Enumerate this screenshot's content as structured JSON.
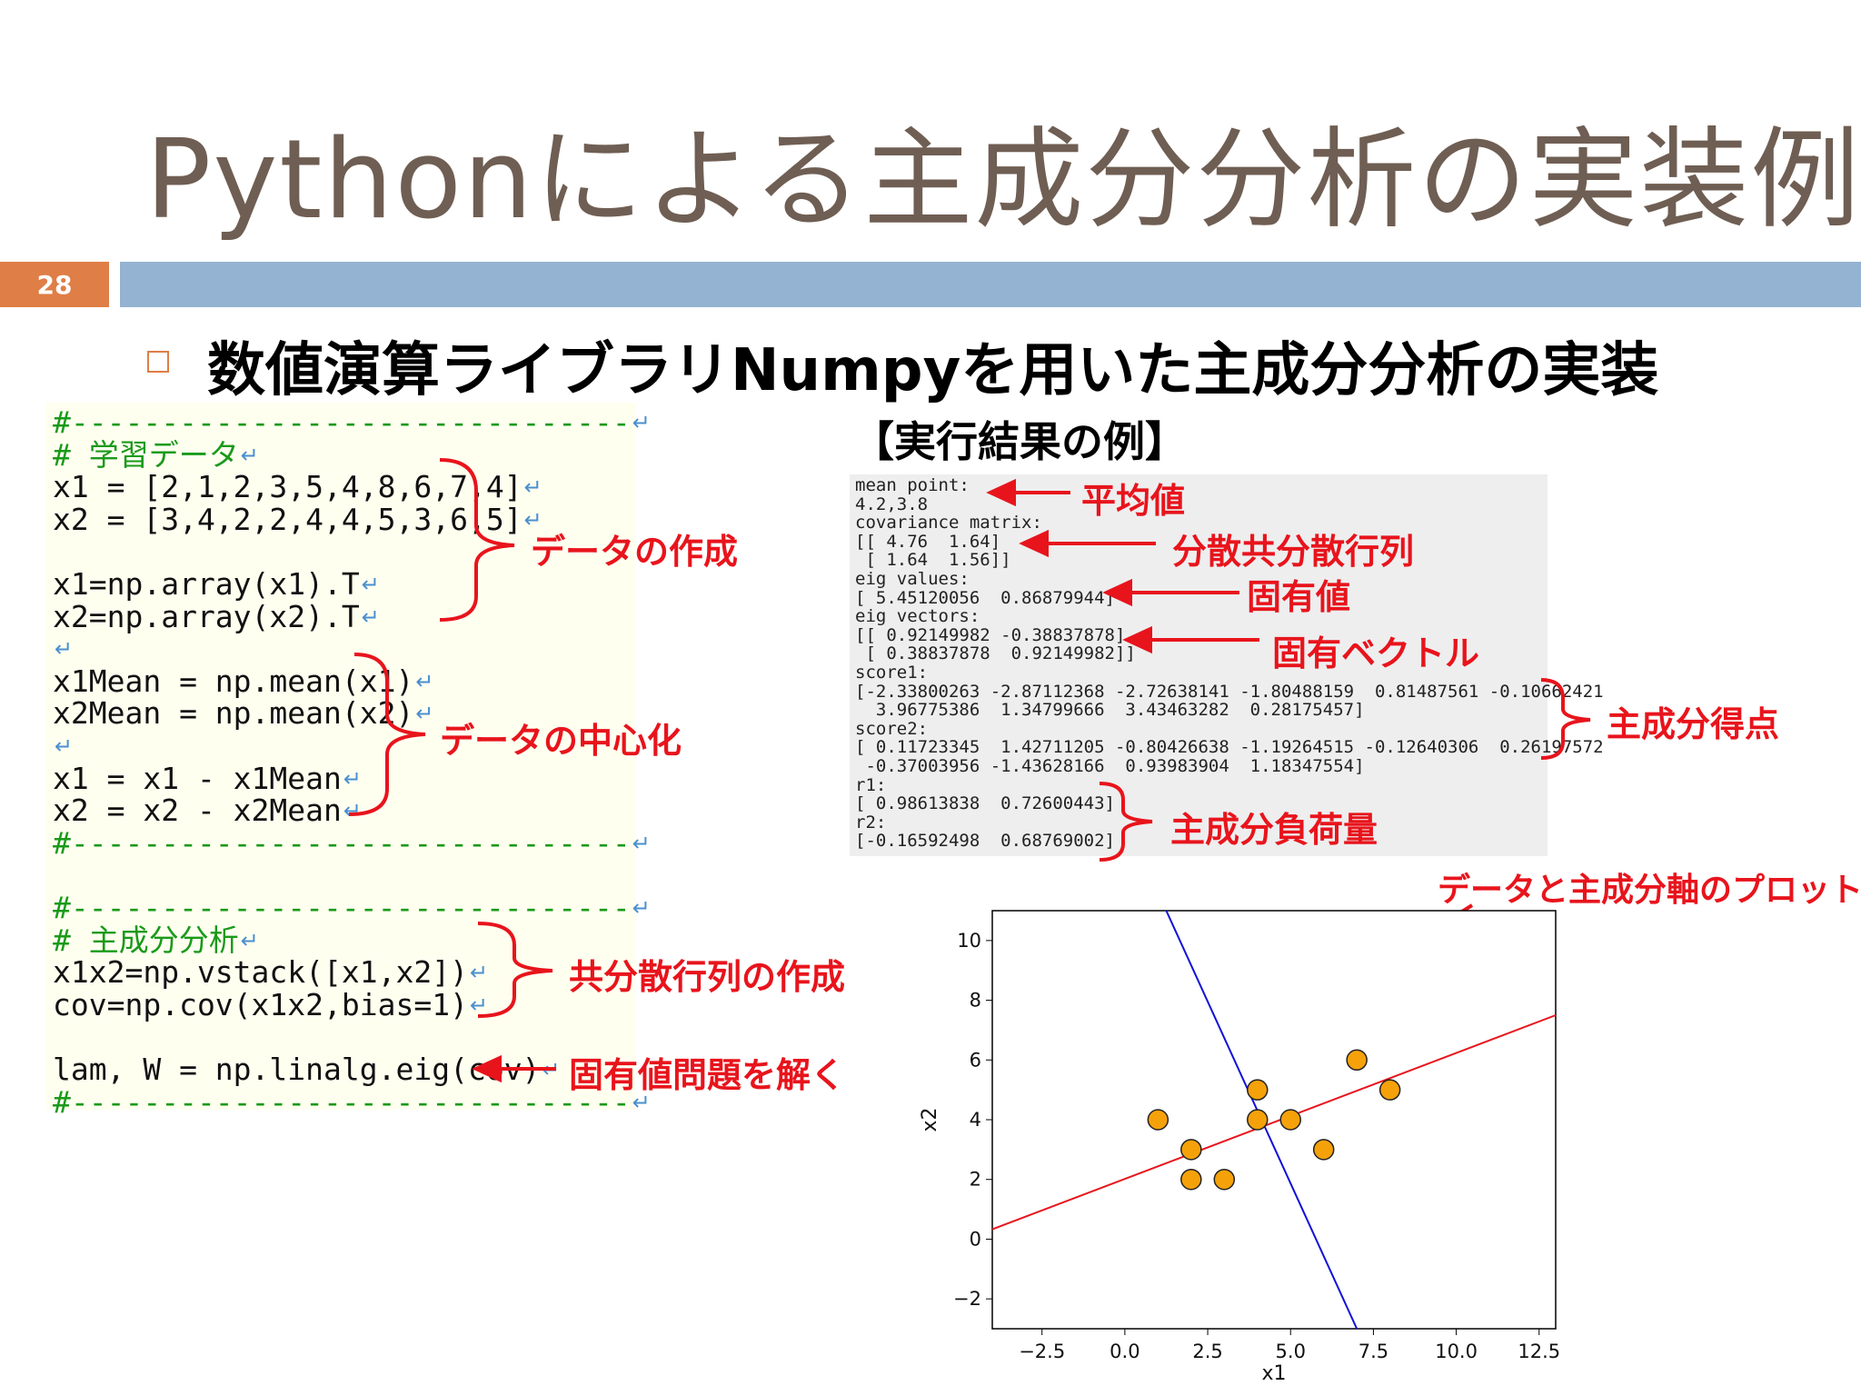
{
  "title": "Pythonによる主成分分析の実装例",
  "page_number": "28",
  "subtitle": "数値演算ライブラリNumpyを用いた主成分分析の実装",
  "code": {
    "lines": [
      {
        "text": "#-------------------------------",
        "type": "comment"
      },
      {
        "text": "# 学習データ",
        "type": "comment"
      },
      {
        "text": "x1 = [2,1,2,3,5,4,8,6,7,4]",
        "type": "code"
      },
      {
        "text": "x2 = [3,4,2,2,4,4,5,3,6,5]",
        "type": "code"
      },
      {
        "text": "",
        "type": "blank"
      },
      {
        "text": "x1=np.array(x1).T",
        "type": "code"
      },
      {
        "text": "x2=np.array(x2).T",
        "type": "code"
      },
      {
        "text": "",
        "type": "ret"
      },
      {
        "text": "x1Mean = np.mean(x1)",
        "type": "code"
      },
      {
        "text": "x2Mean = np.mean(x2)",
        "type": "code"
      },
      {
        "text": "",
        "type": "ret"
      },
      {
        "text": "x1 = x1 - x1Mean",
        "type": "code"
      },
      {
        "text": "x2 = x2 - x2Mean",
        "type": "code"
      },
      {
        "text": "#-------------------------------",
        "type": "comment"
      },
      {
        "text": "",
        "type": "blank"
      },
      {
        "text": "#-------------------------------",
        "type": "comment"
      },
      {
        "text": "# 主成分分析",
        "type": "comment"
      },
      {
        "text": "x1x2=np.vstack([x1,x2])",
        "type": "code"
      },
      {
        "text": "cov=np.cov(x1x2,bias=1)",
        "type": "code"
      },
      {
        "text": "",
        "type": "blank"
      },
      {
        "text": "lam, W = np.linalg.eig(cov)",
        "type": "code"
      },
      {
        "text": "#-------------------------------",
        "type": "comment"
      }
    ]
  },
  "code_annotations": {
    "create_data": "データの作成",
    "center_data": "データの中心化",
    "create_cov": "共分散行列の作成",
    "solve_eig": "固有値問題を解く"
  },
  "results": {
    "heading": "【実行結果の例】",
    "lines": [
      "mean point:",
      "4.2,3.8",
      "covariance matrix:",
      "[[ 4.76  1.64]",
      " [ 1.64  1.56]]",
      "eig values:",
      "[ 5.45120056  0.86879944]",
      "eig vectors:",
      "[[ 0.92149982 -0.38837878]",
      " [ 0.38837878  0.92149982]]",
      "score1:",
      "[-2.33800263 -2.87112368 -2.72638141 -1.80488159  0.81487561 -0.10662421",
      "  3.96775386  1.34799666  3.43463282  0.28175457]",
      "score2:",
      "[ 0.11723345  1.42711205 -0.80426638 -1.19264515 -0.12640306  0.26197572",
      " -0.37003956 -1.43628166  0.93983904  1.18347554]",
      "r1:",
      "[ 0.98613838  0.72600443]",
      "r2:",
      "[-0.16592498  0.68769002]"
    ]
  },
  "result_annotations": {
    "mean": "平均値",
    "covariance": "分散共分散行列",
    "eig_values": "固有値",
    "eig_vectors": "固有ベクトル",
    "scores": "主成分得点",
    "loadings": "主成分負荷量",
    "plot": "データと主成分軸のプロット"
  },
  "colors": {
    "title": "#6f5e53",
    "accent_orange": "#df7e46",
    "title_bar": "#94b3d2",
    "annotation_red": "#e8141c",
    "comment_green": "#1a9a1a",
    "point_fill": "#f5a10a",
    "pc1_line": "#e8141c",
    "pc2_line": "#1010d8"
  },
  "chart_data": {
    "type": "scatter",
    "xlabel": "x1",
    "ylabel": "x2",
    "xlim": [
      -4.0,
      13.0
    ],
    "ylim": [
      -3.0,
      11.0
    ],
    "xticks": [
      -2.5,
      0.0,
      2.5,
      5.0,
      7.5,
      10.0,
      12.5
    ],
    "xtick_labels": [
      "−2.5",
      "0.0",
      "2.5",
      "5.0",
      "7.5",
      "10.0",
      "12.5"
    ],
    "yticks": [
      -2,
      0,
      2,
      4,
      6,
      8,
      10
    ],
    "ytick_labels": [
      "−2",
      "0",
      "2",
      "4",
      "6",
      "8",
      "10"
    ],
    "points": [
      {
        "x": 2,
        "y": 3
      },
      {
        "x": 1,
        "y": 4
      },
      {
        "x": 2,
        "y": 2
      },
      {
        "x": 3,
        "y": 2
      },
      {
        "x": 5,
        "y": 4
      },
      {
        "x": 4,
        "y": 4
      },
      {
        "x": 8,
        "y": 5
      },
      {
        "x": 6,
        "y": 3
      },
      {
        "x": 7,
        "y": 6
      },
      {
        "x": 4,
        "y": 5
      }
    ],
    "lines": [
      {
        "from": [
          -4.0,
          0.33
        ],
        "to": [
          13.0,
          7.5
        ],
        "color": "#e8141c"
      },
      {
        "from": [
          1.25,
          11.0
        ],
        "to": [
          7.0,
          -3.0
        ],
        "color": "#1010d8"
      }
    ]
  }
}
